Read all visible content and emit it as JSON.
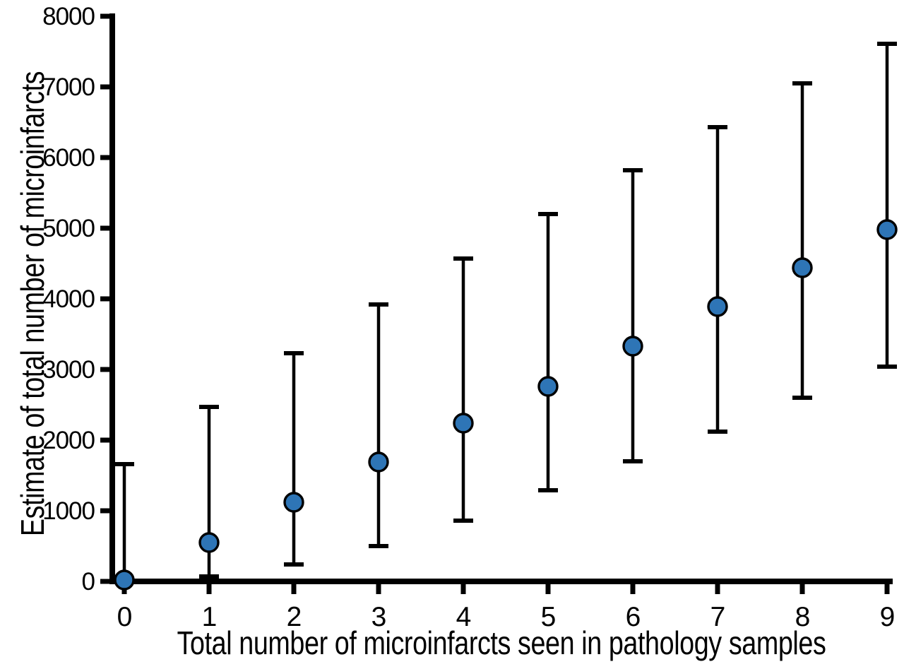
{
  "chart_data": {
    "type": "scatter",
    "title": "",
    "xlabel": "Total number of microinfarcts seen in pathology samples",
    "ylabel": "Estimate of total number of microinfarcts",
    "x": [
      0,
      1,
      2,
      3,
      4,
      5,
      6,
      7,
      8,
      9
    ],
    "series": [
      {
        "name": "Estimate of total number of microinfarcts",
        "values": [
          20,
          550,
          1120,
          1690,
          2240,
          2760,
          3330,
          3890,
          4440,
          4980
        ],
        "ci_upper": [
          1660,
          2470,
          3230,
          3920,
          4570,
          5200,
          5820,
          6430,
          7050,
          7610
        ],
        "ci_lower": [
          0,
          70,
          240,
          500,
          860,
          1290,
          1700,
          2120,
          2600,
          3040
        ]
      }
    ],
    "xticks": [
      "0",
      "1",
      "2",
      "3",
      "4",
      "5",
      "6",
      "7",
      "8",
      "9"
    ],
    "yticks": [
      "0",
      "1000",
      "2000",
      "3000",
      "4000",
      "5000",
      "6000",
      "7000",
      "8000"
    ],
    "ytick_values": [
      0,
      1000,
      2000,
      3000,
      4000,
      5000,
      6000,
      7000,
      8000
    ],
    "xlim": [
      0,
      9
    ],
    "ylim": [
      0,
      8000
    ],
    "grid": false,
    "legend": "none",
    "colors": {
      "marker_fill": "#2e75b6",
      "marker_outline": "#000000",
      "errorbar": "#000000",
      "axis": "#000000",
      "background": "#ffffff"
    }
  }
}
